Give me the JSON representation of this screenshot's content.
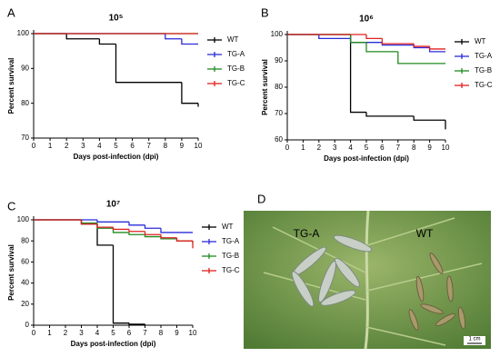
{
  "chart_data": [
    {
      "type": "step",
      "panel": "A",
      "title": "10⁵",
      "xlabel": "Days post-infection (dpi)",
      "ylabel": "Percent survival",
      "xlim": [
        0,
        10
      ],
      "xticks": [
        0,
        1,
        2,
        3,
        4,
        5,
        6,
        7,
        8,
        9,
        10
      ],
      "ylim": [
        70,
        100
      ],
      "yticks": [
        70,
        80,
        90,
        100
      ],
      "series": [
        {
          "name": "WT",
          "color": "#000000",
          "x": [
            0,
            2,
            4,
            5,
            9,
            10
          ],
          "values": [
            100,
            98.5,
            97,
            86,
            80,
            79
          ]
        },
        {
          "name": "TG-A",
          "color": "#2b2bd9",
          "x": [
            0,
            8,
            9,
            10
          ],
          "values": [
            100,
            98.5,
            97,
            97
          ]
        },
        {
          "name": "TG-B",
          "color": "#1f8a1f",
          "x": [
            0,
            10
          ],
          "values": [
            100,
            100
          ]
        },
        {
          "name": "TG-C",
          "color": "#e02020",
          "x": [
            0,
            10
          ],
          "values": [
            100,
            100
          ]
        }
      ]
    },
    {
      "type": "step",
      "panel": "B",
      "title": "10⁶",
      "xlabel": "Days post-infection (dpi)",
      "ylabel": "Percent survival",
      "xlim": [
        0,
        10
      ],
      "xticks": [
        0,
        1,
        2,
        3,
        4,
        5,
        6,
        7,
        8,
        9,
        10
      ],
      "ylim": [
        60,
        100
      ],
      "yticks": [
        60,
        70,
        80,
        90,
        100
      ],
      "series": [
        {
          "name": "WT",
          "color": "#000000",
          "x": [
            0,
            4,
            5,
            8,
            10
          ],
          "values": [
            100,
            70.5,
            69,
            67.5,
            64
          ]
        },
        {
          "name": "TG-A",
          "color": "#2b2bd9",
          "x": [
            0,
            2,
            4,
            6,
            8,
            9,
            10
          ],
          "values": [
            100,
            98.5,
            97,
            96,
            95,
            93.5,
            93.5
          ]
        },
        {
          "name": "TG-B",
          "color": "#1f8a1f",
          "x": [
            0,
            4,
            5,
            7,
            10
          ],
          "values": [
            100,
            97,
            93.5,
            89,
            89
          ]
        },
        {
          "name": "TG-C",
          "color": "#e02020",
          "x": [
            0,
            5,
            6,
            8,
            9,
            10
          ],
          "values": [
            100,
            98.5,
            96.5,
            95.5,
            94.5,
            94.5
          ]
        }
      ]
    },
    {
      "type": "step",
      "panel": "C",
      "title": "10⁷",
      "xlabel": "Days post-infection (dpi)",
      "ylabel": "Percent survival",
      "xlim": [
        0,
        10
      ],
      "xticks": [
        0,
        1,
        2,
        3,
        4,
        5,
        6,
        7,
        8,
        9,
        10
      ],
      "ylim": [
        0,
        100
      ],
      "yticks": [
        0,
        20,
        40,
        60,
        80,
        100
      ],
      "series": [
        {
          "name": "WT",
          "color": "#000000",
          "x": [
            0,
            3,
            4,
            5,
            6,
            7
          ],
          "values": [
            100,
            96,
            76,
            2,
            1,
            0
          ]
        },
        {
          "name": "TG-A",
          "color": "#2b2bd9",
          "x": [
            0,
            4,
            6,
            7,
            8,
            10
          ],
          "values": [
            100,
            98,
            95,
            92,
            88,
            88
          ]
        },
        {
          "name": "TG-B",
          "color": "#1f8a1f",
          "x": [
            0,
            3,
            4,
            5,
            6,
            7,
            8,
            9,
            10
          ],
          "values": [
            100,
            97,
            92,
            88,
            86,
            84,
            82,
            80,
            78
          ]
        },
        {
          "name": "TG-C",
          "color": "#e02020",
          "x": [
            0,
            3,
            4,
            5,
            6,
            7,
            8,
            9,
            10
          ],
          "values": [
            100,
            96,
            93,
            91,
            89,
            86,
            83,
            80,
            73
          ]
        }
      ]
    }
  ],
  "photo": {
    "panel": "D",
    "labels": [
      "TG-A",
      "WT"
    ],
    "scale": "1 cm"
  }
}
